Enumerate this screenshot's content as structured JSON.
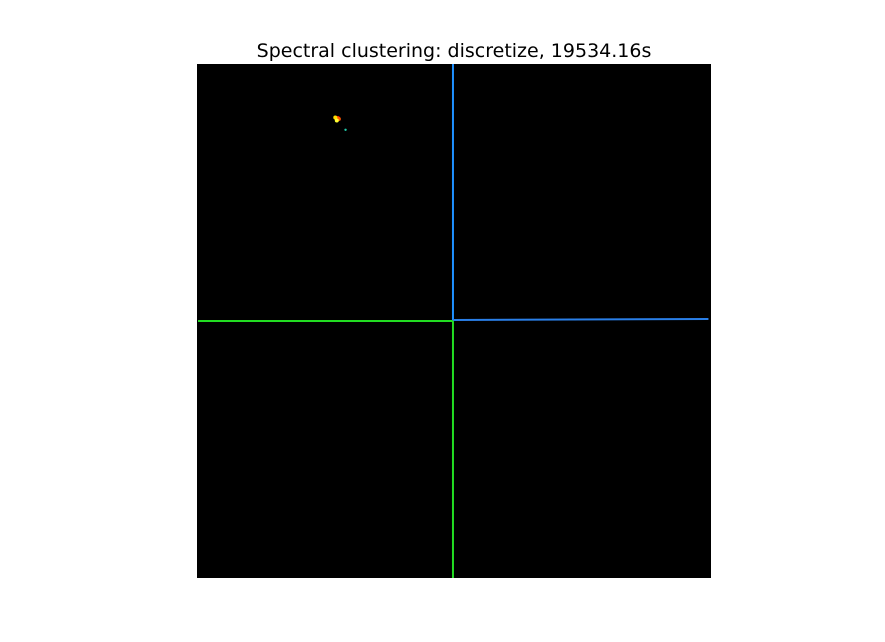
{
  "chart_data": {
    "type": "image",
    "title": "Spectral clustering: discretize, 19534.16s",
    "axes_visible": false,
    "grid": false,
    "background_color": "#000000",
    "image_extent": {
      "x": [
        0,
        100
      ],
      "y": [
        0,
        100
      ]
    },
    "contour_lines": [
      {
        "name": "",
        "color": "#1e90ff",
        "points": [
          [
            49.8,
            100
          ],
          [
            49.8,
            50.2
          ]
        ]
      },
      {
        "name": "",
        "color": "#2a7fe8",
        "points": [
          [
            49.8,
            50.2
          ],
          [
            99.5,
            50.4
          ]
        ]
      },
      {
        "name": "",
        "color": "#22dd22",
        "points": [
          [
            0.2,
            50.0
          ],
          [
            49.8,
            50.0
          ]
        ]
      },
      {
        "name": "",
        "color": "#22dd22",
        "points": [
          [
            49.8,
            50.0
          ],
          [
            49.8,
            0
          ]
        ]
      }
    ],
    "points": [
      {
        "x": 27.4,
        "y": 89.5,
        "color": "#ff2200"
      },
      {
        "x": 27.1,
        "y": 89.4,
        "color": "#ffaa00"
      },
      {
        "x": 26.9,
        "y": 89.6,
        "color": "#ffdd00"
      },
      {
        "x": 27.6,
        "y": 89.3,
        "color": "#ff5500"
      },
      {
        "x": 27.2,
        "y": 89.0,
        "color": "#ffff33"
      },
      {
        "x": 28.9,
        "y": 87.2,
        "color": "#22ccaa"
      }
    ]
  }
}
